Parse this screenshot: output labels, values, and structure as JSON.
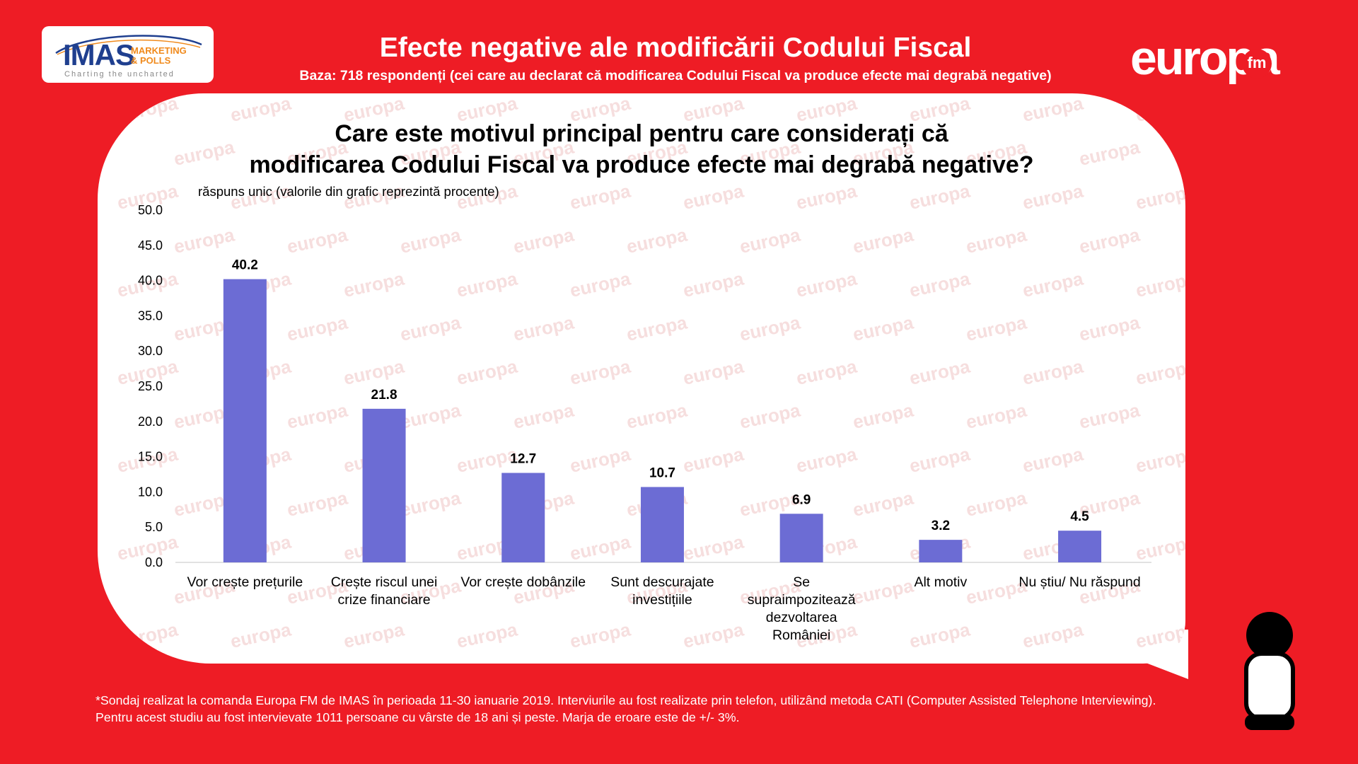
{
  "header": {
    "title": "Efecte negative ale modificării Codului Fiscal",
    "subtitle": "Baza: 718 respondenți (cei care au declarat că modificarea Codului Fiscal va produce efecte mai degrabă negative)"
  },
  "logos": {
    "imas": {
      "brand": "IMAS",
      "line1": "MARKETING",
      "line2": "& POLLS",
      "tagline": "Charting the uncharted"
    },
    "europa": {
      "word": "europa",
      "fm": "fm",
      "watermark_text": "europa"
    }
  },
  "question": {
    "line1": "Care este motivul principal pentru care considerați că",
    "line2": "modificarea Codului Fiscal va produce efecte mai degrabă negative?",
    "note": "răspuns unic (valorile din grafic reprezintă procente)"
  },
  "chart_data": {
    "type": "bar",
    "title": "",
    "xlabel": "",
    "ylabel": "",
    "ylim": [
      0,
      50
    ],
    "yticks": [
      "0.0",
      "5.0",
      "10.0",
      "15.0",
      "20.0",
      "25.0",
      "30.0",
      "35.0",
      "40.0",
      "45.0",
      "50.0"
    ],
    "grid": false,
    "legend": "none",
    "bar_color": "#6c6cd4",
    "categories": [
      [
        "Vor crește prețurile"
      ],
      [
        "Crește riscul unei",
        "crize financiare"
      ],
      [
        "Vor crește dobânzile"
      ],
      [
        "Sunt descurajate",
        "investițiile"
      ],
      [
        "Se",
        "supraimpozitează",
        "dezvoltarea",
        "României"
      ],
      [
        "Alt motiv"
      ],
      [
        "Nu știu/ Nu răspund"
      ]
    ],
    "values": [
      40.2,
      21.8,
      12.7,
      10.7,
      6.9,
      3.2,
      4.5
    ],
    "value_labels": [
      "40.2",
      "21.8",
      "12.7",
      "10.7",
      "6.9",
      "3.2",
      "4.5"
    ]
  },
  "footnote": {
    "line1": "*Sondaj realizat la comanda Europa FM de IMAS în perioada 11-30 ianuarie 2019. Interviurile au fost realizate prin telefon, utilizând metoda CATI (Computer Assisted Telephone Interviewing).",
    "line2": "Pentru acest studiu au fost intervievate 1011 persoane cu vârste de 18 ani și peste. Marja de eroare este de +/- 3%."
  },
  "colors": {
    "background": "#ee1c25",
    "bubble": "#ffffff",
    "bar": "#6c6cd4"
  }
}
